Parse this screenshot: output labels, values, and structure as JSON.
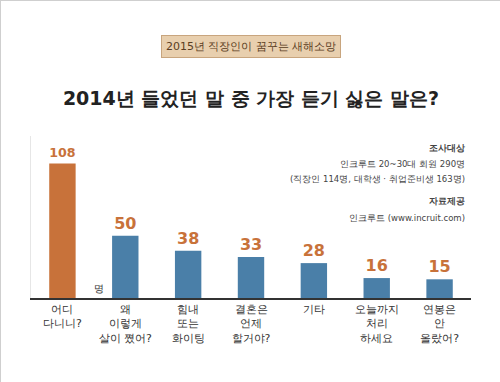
{
  "chart_data": {
    "type": "bar",
    "title": "2014년 들었던 말 중 가장 듣기 싫은 말은?",
    "subtitle": "2015년 직장인이 꿈꾸는 새해소망",
    "categories": [
      "어디\n다니니?",
      "왜\n이렇게\n살이 쪘어?",
      "힘내\n또는\n화이팅",
      "결혼은\n언제\n할거야?",
      "기타",
      "오늘까지\n처리\n하세요",
      "연봉은\n안\n올랐어?"
    ],
    "values": [
      108,
      50,
      38,
      33,
      28,
      16,
      15
    ],
    "colors": [
      "#c8723a",
      "#4a7fa8",
      "#4a7fa8",
      "#4a7fa8",
      "#4a7fa8",
      "#4a7fa8",
      "#4a7fa8"
    ],
    "ylim": [
      0,
      130
    ],
    "data_labels": true,
    "tick_labels": "x",
    "grid": false,
    "annotations": [
      "명",
      "조사대상",
      "인크루트 20~30대 회원 290명",
      "(직장인 114명, 대학생 · 취업준비생 163명)",
      "자료제공",
      "인크루트 (www.incruit.com)"
    ]
  }
}
